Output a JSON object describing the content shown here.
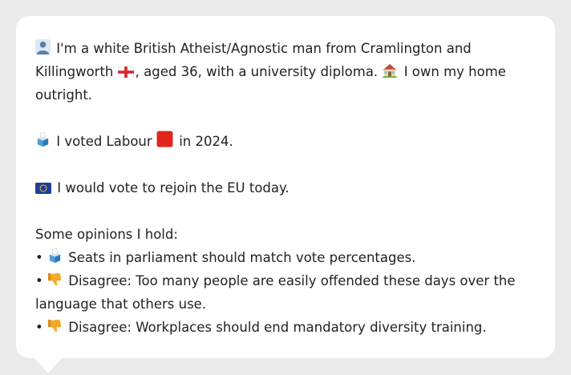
{
  "profile": {
    "intro_a": "I'm a white British Atheist/Agnostic man from Cramlington and",
    "intro_b": "Killingworth",
    "intro_c": ", aged 36, with a university diploma.",
    "intro_d": "I own my home outright."
  },
  "vote": {
    "prefix": "I voted Labour",
    "suffix": "in 2024."
  },
  "eu": {
    "text": "I would vote to rejoin the EU today."
  },
  "opinions": {
    "heading": "Some opinions I hold:",
    "items": [
      {
        "bullet": "•",
        "icon": "ballot-box-icon",
        "text": "Seats in parliament should match vote percentages."
      },
      {
        "bullet": "•",
        "icon": "thumbs-down-icon",
        "text": "Disagree: Too many people are easily offended these days over the language that others use."
      },
      {
        "bullet": "•",
        "icon": "thumbs-down-icon",
        "text": "Disagree: Workplaces should end mandatory diversity training."
      }
    ]
  },
  "icons": {
    "person": "person-silhouette-icon",
    "england_flag": "england-flag-icon",
    "house": "house-icon",
    "ballot": "ballot-box-icon",
    "labour": "red-square-icon",
    "eu_flag": "eu-flag-icon",
    "thumbs_down": "thumbs-down-icon"
  },
  "colors": {
    "background": "#eaeaea",
    "card": "#ffffff",
    "text": "#222222",
    "labour_red": "#e0261b",
    "eu_blue": "#1f3e9b",
    "eu_gold": "#f5cc1f",
    "thumb": "#f4a92b"
  }
}
